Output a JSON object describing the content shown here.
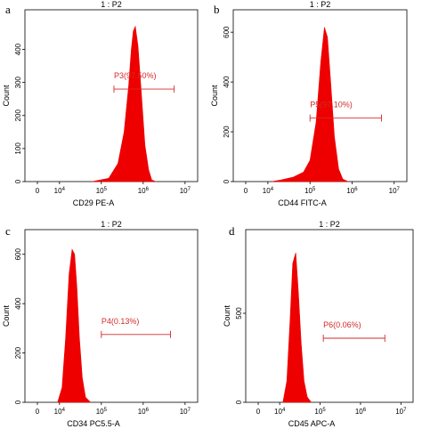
{
  "chart_data": [
    {
      "type": "area",
      "panel_letter": "a",
      "title": "1 : P2",
      "xlabel": "CD29 PE-A",
      "ylabel": "Count",
      "x_scale": "log",
      "xlim": [
        -2000,
        20000000
      ],
      "ylim": [
        0,
        520
      ],
      "x_ticks": [
        {
          "v": 0,
          "label": "0"
        },
        {
          "v": 10000,
          "label": "10^4"
        },
        {
          "v": 100000,
          "label": "10^5"
        },
        {
          "v": 1000000,
          "label": "10^6"
        },
        {
          "v": 10000000,
          "label": "10^7"
        }
      ],
      "y_ticks": [
        {
          "v": 0,
          "label": "0"
        },
        {
          "v": 100,
          "label": "100"
        },
        {
          "v": 200,
          "label": "200"
        },
        {
          "v": 300,
          "label": "300"
        },
        {
          "v": 400,
          "label": "400"
        }
      ],
      "x": [
        60000,
        150000,
        250000,
        350000,
        450000,
        520000,
        580000,
        650000,
        750000,
        900000,
        1100000,
        1350000,
        1600000,
        2000000
      ],
      "y": [
        0,
        10,
        55,
        150,
        290,
        400,
        455,
        470,
        410,
        270,
        110,
        35,
        5,
        0
      ],
      "gate": {
        "label": "P3(97.50%)",
        "x1": 200000,
        "x2": 5500000,
        "y": 280
      },
      "color": "#ee0000"
    },
    {
      "type": "area",
      "panel_letter": "b",
      "title": "1 : P2",
      "xlabel": "CD44 FITC-A",
      "ylabel": "Count",
      "x_scale": "log",
      "xlim": [
        -2000,
        20000000
      ],
      "ylim": [
        0,
        690
      ],
      "x_ticks": [
        {
          "v": 0,
          "label": "0"
        },
        {
          "v": 10000,
          "label": "10^4"
        },
        {
          "v": 100000,
          "label": "10^5"
        },
        {
          "v": 1000000,
          "label": "10^6"
        },
        {
          "v": 10000000,
          "label": "10^7"
        }
      ],
      "y_ticks": [
        {
          "v": 0,
          "label": "0"
        },
        {
          "v": 200,
          "label": "200"
        },
        {
          "v": 400,
          "label": "400"
        },
        {
          "v": 600,
          "label": "600"
        }
      ],
      "x": [
        12000,
        20000,
        40000,
        70000,
        100000,
        140000,
        180000,
        220000,
        260000,
        310000,
        380000,
        480000,
        600000,
        800000
      ],
      "y": [
        0,
        6,
        18,
        38,
        85,
        240,
        480,
        620,
        580,
        400,
        180,
        50,
        10,
        0
      ],
      "gate": {
        "label": "P5(97.10%)",
        "x1": 100000,
        "x2": 5000000,
        "y": 255
      },
      "color": "#ee0000"
    },
    {
      "type": "area",
      "panel_letter": "c",
      "title": "1 : P2",
      "xlabel": "CD34 PC5.5-A",
      "ylabel": "Count",
      "x_scale": "log",
      "xlim": [
        -800,
        20000000
      ],
      "ylim": [
        0,
        700
      ],
      "x_ticks": [
        {
          "v": 0,
          "label": "0"
        },
        {
          "v": 10000,
          "label": "10^4"
        },
        {
          "v": 100000,
          "label": "10^5"
        },
        {
          "v": 1000000,
          "label": "10^6"
        },
        {
          "v": 10000000,
          "label": "10^7"
        }
      ],
      "y_ticks": [
        {
          "v": 0,
          "label": "0"
        },
        {
          "v": 200,
          "label": "200"
        },
        {
          "v": 400,
          "label": "400"
        },
        {
          "v": 600,
          "label": "600"
        }
      ],
      "x": [
        9000,
        11500,
        14000,
        17000,
        20000,
        23000,
        26000,
        30000,
        35000,
        42000,
        55000
      ],
      "y": [
        0,
        60,
        260,
        520,
        620,
        600,
        470,
        260,
        100,
        20,
        0
      ],
      "gate": {
        "label": "P4(0.13%)",
        "x1": 100000,
        "x2": 4500000,
        "y": 275
      },
      "color": "#ee0000"
    },
    {
      "type": "area",
      "panel_letter": "d",
      "title": "1 : P2",
      "xlabel": "CD45 APC-A",
      "ylabel": "Count",
      "x_scale": "log",
      "xlim": [
        -1000,
        20000000
      ],
      "ylim": [
        0,
        970
      ],
      "x_ticks": [
        {
          "v": 0,
          "label": "0"
        },
        {
          "v": 10000,
          "label": "10^4"
        },
        {
          "v": 100000,
          "label": "10^5"
        },
        {
          "v": 1000000,
          "label": "10^6"
        },
        {
          "v": 10000000,
          "label": "10^7"
        }
      ],
      "y_ticks": [
        {
          "v": 0,
          "label": "0"
        },
        {
          "v": 500,
          "label": "500"
        }
      ],
      "x": [
        12000,
        15000,
        18000,
        21000,
        25000,
        29000,
        34000,
        40000,
        48000,
        60000
      ],
      "y": [
        0,
        120,
        450,
        780,
        840,
        620,
        330,
        120,
        30,
        0
      ],
      "gate": {
        "label": "P6(0.06%)",
        "x1": 120000,
        "x2": 4000000,
        "y": 360
      },
      "color": "#ee0000"
    }
  ],
  "colors": {
    "gate": "#d42a2a",
    "fill": "#ee0000",
    "axis": "#000000"
  }
}
